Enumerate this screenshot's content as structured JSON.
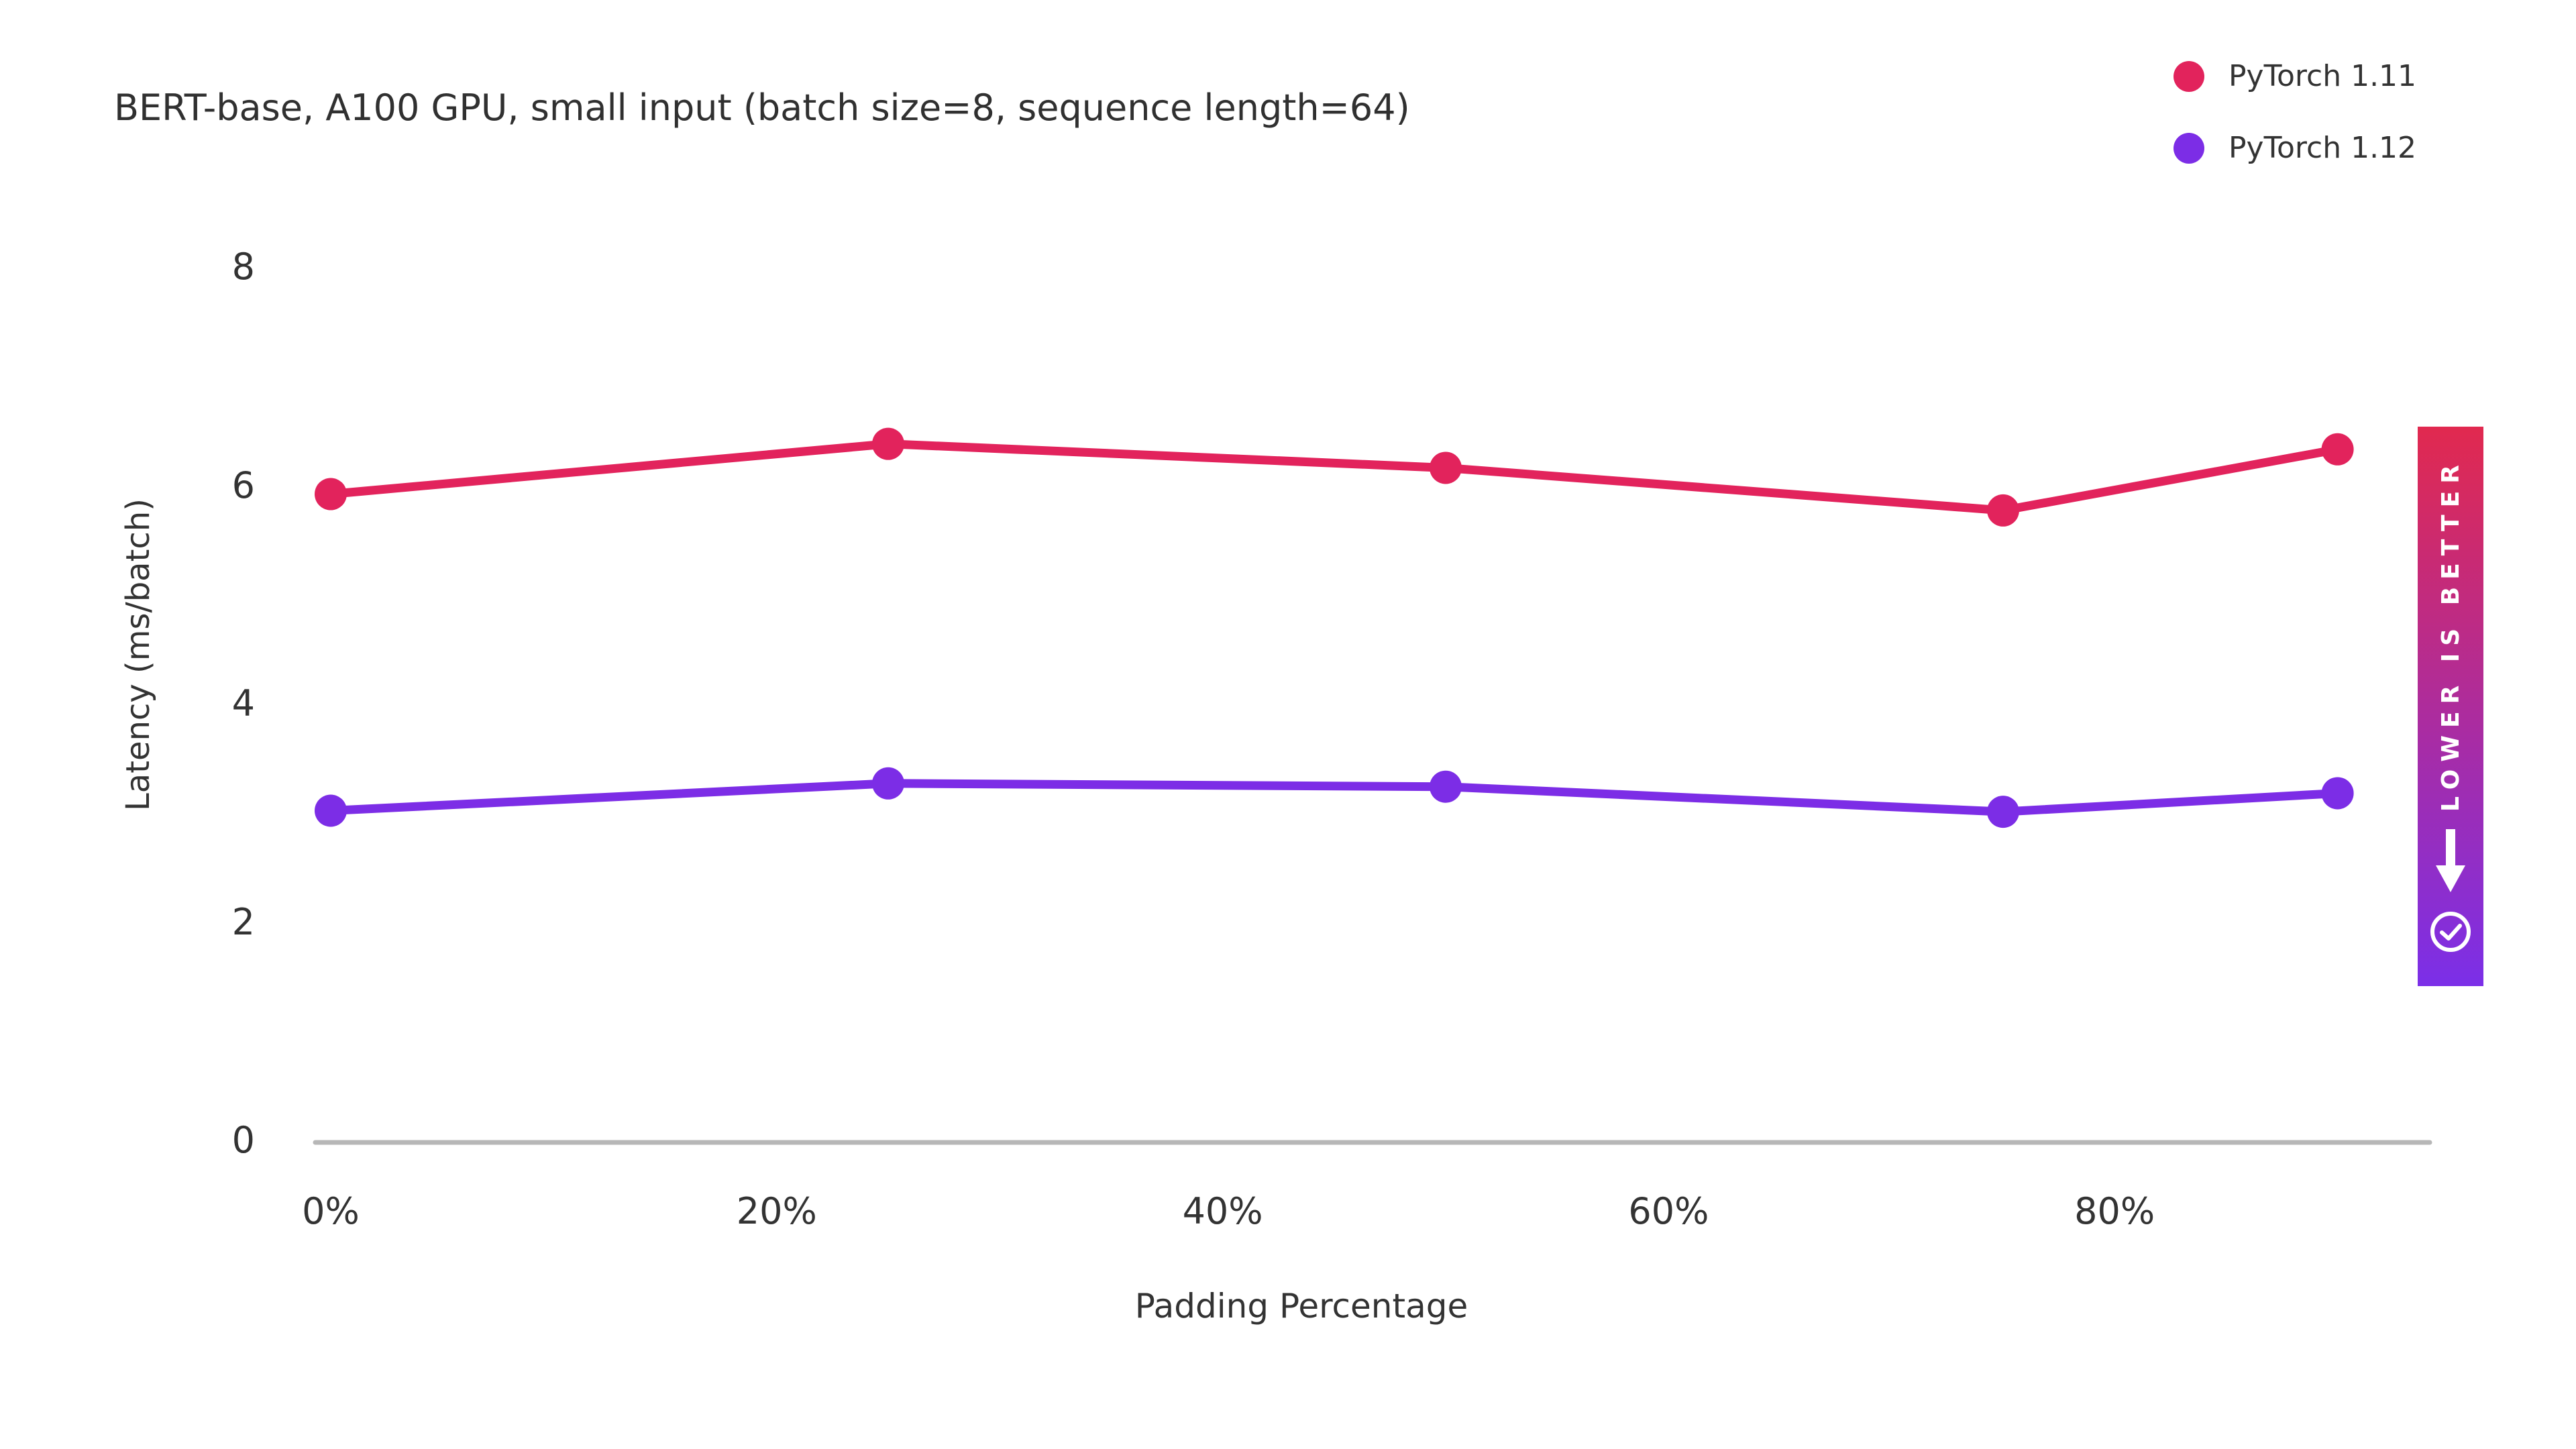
{
  "title": "BERT-base, A100 GPU, small input (batch size=8, sequence length=64)",
  "legend": {
    "items": [
      {
        "label": "PyTorch 1.11",
        "color": "#E2235C"
      },
      {
        "label": "PyTorch 1.12",
        "color": "#7C2DE6"
      }
    ]
  },
  "banner": {
    "text": "LOWER IS BETTER",
    "gradient_top": "#E1294F",
    "gradient_bottom": "#7B2FE8",
    "arrow_icon": "down-arrow",
    "check_icon": "check-circle"
  },
  "chart_data": {
    "type": "line",
    "x": [
      0,
      25,
      50,
      75,
      90
    ],
    "x_unit": "%",
    "series": [
      {
        "name": "PyTorch 1.11",
        "color": "#E2235C",
        "values": [
          5.92,
          6.38,
          6.16,
          5.77,
          6.33
        ]
      },
      {
        "name": "PyTorch 1.12",
        "color": "#7C2DE6",
        "values": [
          3.02,
          3.27,
          3.24,
          3.01,
          3.18
        ]
      }
    ],
    "title": "BERT-base, A100 GPU, small input (batch size=8, sequence length=64)",
    "xlabel": "Padding Percentage",
    "ylabel": "Latency (ms/batch)",
    "xticks": {
      "values": [
        0,
        20,
        40,
        60,
        80
      ],
      "labels": [
        "0%",
        "20%",
        "40%",
        "60%",
        "80%"
      ]
    },
    "yticks": {
      "values": [
        0,
        2,
        4,
        6,
        8
      ],
      "labels": [
        "0",
        "2",
        "4",
        "6",
        "8"
      ]
    },
    "ylim": [
      0,
      8
    ],
    "grid": false,
    "legend_position": "top-right",
    "axis_line_color": "#B7B7B7",
    "annotation": "LOWER IS BETTER"
  }
}
